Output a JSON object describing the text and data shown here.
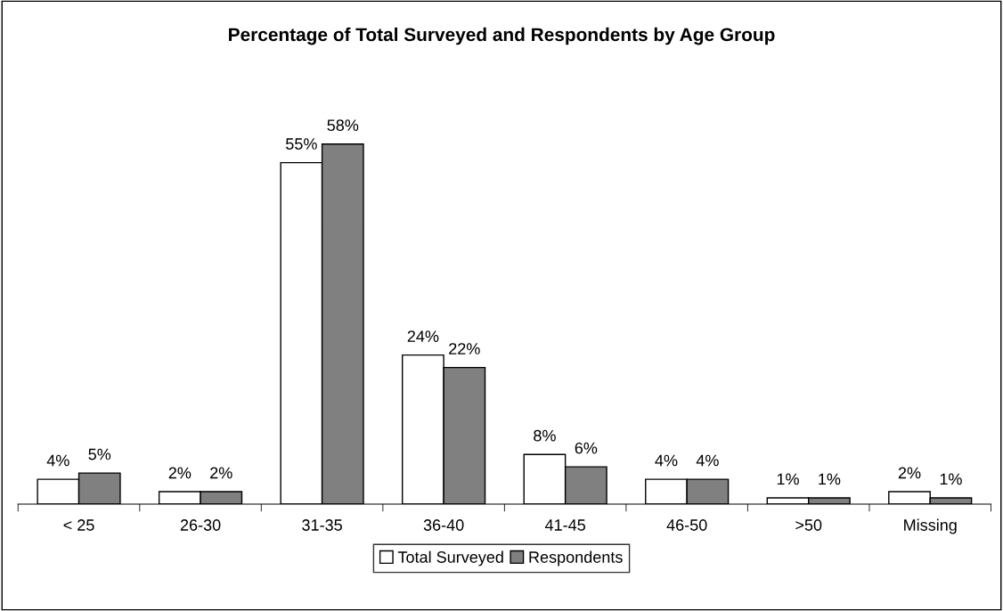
{
  "chart_data": {
    "type": "bar",
    "title": "Percentage of Total Surveyed and Respondents by Age Group",
    "categories": [
      "< 25",
      "26-30",
      "31-35",
      "36-40",
      "41-45",
      "46-50",
      ">50",
      "Missing"
    ],
    "series": [
      {
        "name": "Total Surveyed",
        "color": "#ffffff",
        "values": [
          4,
          2,
          55,
          24,
          8,
          4,
          1,
          2
        ],
        "value_labels": [
          "4%",
          "2%",
          "55%",
          "24%",
          "8%",
          "4%",
          "1%",
          "2%"
        ]
      },
      {
        "name": "Respondents",
        "color": "#808080",
        "values": [
          5,
          2,
          58,
          22,
          6,
          4,
          1,
          1
        ],
        "value_labels": [
          "5%",
          "2%",
          "58%",
          "22%",
          "6%",
          "4%",
          "1%",
          "1%"
        ]
      }
    ],
    "legend": "bottom",
    "grid": false
  }
}
